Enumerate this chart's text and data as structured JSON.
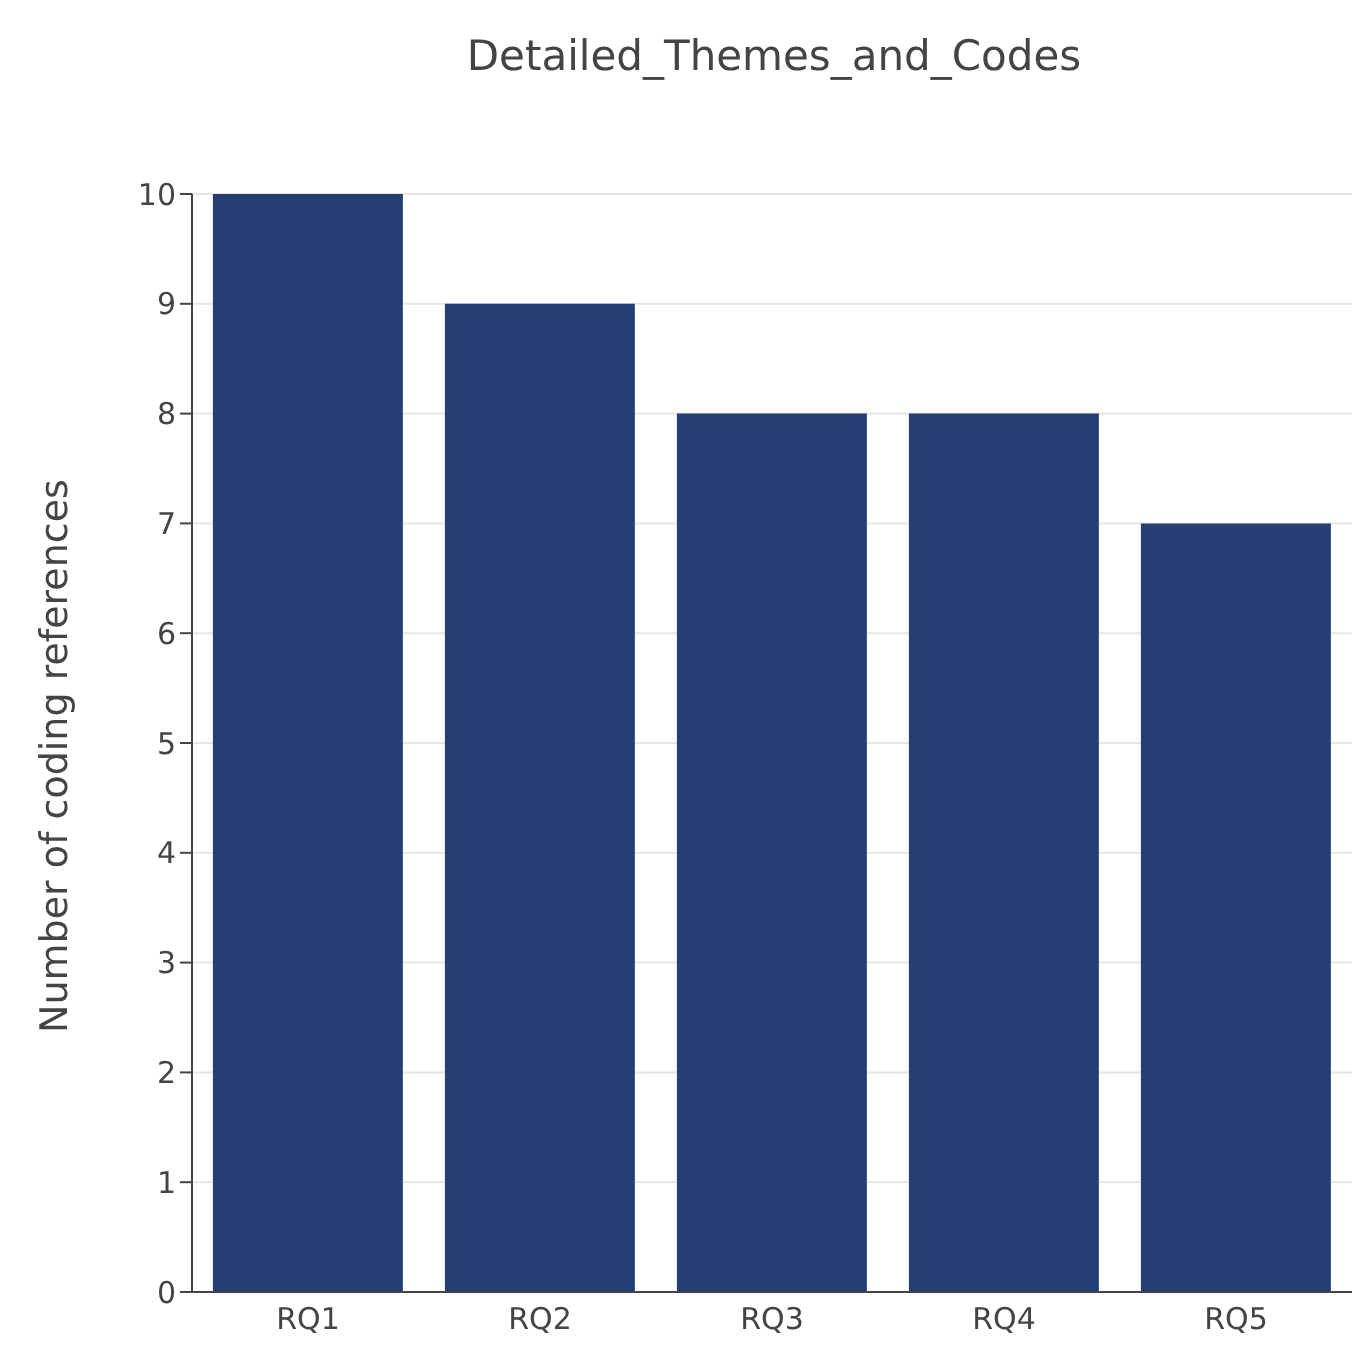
{
  "chart_data": {
    "type": "bar",
    "title": "Detailed_Themes_and_Codes",
    "ylabel": "Number of coding references",
    "categories": [
      "RQ1",
      "RQ2",
      "RQ3",
      "RQ4",
      "RQ5"
    ],
    "values": [
      10,
      9,
      8,
      8,
      7
    ],
    "color": "#253f73",
    "ylim": [
      0,
      10
    ],
    "yticks": [
      0,
      1,
      2,
      3,
      4,
      5,
      6,
      7,
      8,
      9,
      10
    ],
    "grid": "y"
  }
}
